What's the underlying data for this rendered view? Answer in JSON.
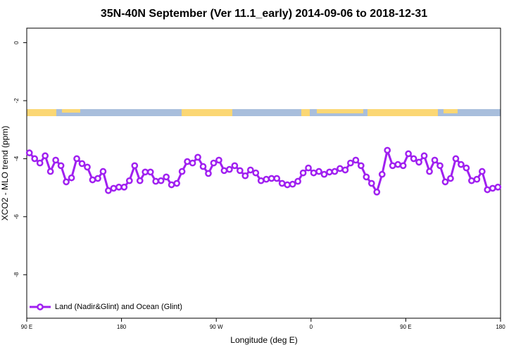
{
  "chart_data": {
    "type": "line",
    "title": "35N-40N September (Ver 11.1_early)   2014-09-06 to 2018-12-31",
    "x_label": "Longitude (deg E)",
    "y_label": "XCO2 - MLO trend (ppm)",
    "xlim": [
      90,
      540
    ],
    "xticks": [
      {
        "value": 90,
        "label": "90 E"
      },
      {
        "value": 180,
        "label": "180"
      },
      {
        "value": 270,
        "label": "90 W"
      },
      {
        "value": 360,
        "label": "0"
      },
      {
        "value": 450,
        "label": "90 E"
      },
      {
        "value": 540,
        "label": "180"
      }
    ],
    "ylim": [
      -9.5,
      0.5
    ],
    "yticks": [
      0,
      -2,
      -4,
      -6,
      -8
    ],
    "grid": false,
    "legend": "bottom-left",
    "x": [
      92.5,
      97.5,
      102.5,
      107.5,
      112.5,
      117.5,
      122.5,
      127.5,
      132.5,
      137.5,
      142.5,
      147.5,
      152.5,
      157.5,
      162.5,
      167.5,
      172.5,
      177.5,
      182.5,
      187.5,
      192.5,
      197.5,
      202.5,
      207.5,
      212.5,
      217.5,
      222.5,
      227.5,
      232.5,
      237.5,
      242.5,
      247.5,
      252.5,
      257.5,
      262.5,
      267.5,
      272.5,
      277.5,
      282.5,
      287.5,
      292.5,
      297.5,
      302.5,
      307.5,
      312.5,
      317.5,
      322.5,
      327.5,
      332.5,
      337.5,
      342.5,
      347.5,
      352.5,
      357.5,
      362.5,
      367.5,
      372.5,
      377.5,
      382.5,
      387.5,
      392.5,
      397.5,
      402.5,
      407.5,
      412.5,
      417.5,
      422.5,
      427.5,
      432.5,
      437.5,
      442.5,
      447.5,
      452.5,
      457.5,
      462.5,
      467.5,
      472.5,
      477.5,
      482.5,
      487.5,
      492.5,
      497.5,
      502.5,
      507.5,
      512.5,
      517.5,
      522.5,
      527.5,
      532.5,
      537.5
    ],
    "series": [
      {
        "name": "Land (Nadir&Glint) and Ocean (Glint)",
        "color": "#a020f0",
        "values": [
          -3.8,
          -4.0,
          -4.15,
          -3.9,
          -4.44,
          -4.05,
          -4.24,
          -4.8,
          -4.66,
          -4.0,
          -4.17,
          -4.29,
          -4.73,
          -4.68,
          -4.44,
          -5.1,
          -5.02,
          -4.98,
          -4.98,
          -4.76,
          -4.24,
          -4.76,
          -4.46,
          -4.46,
          -4.78,
          -4.76,
          -4.63,
          -4.9,
          -4.85,
          -4.44,
          -4.1,
          -4.15,
          -3.95,
          -4.27,
          -4.51,
          -4.15,
          -4.05,
          -4.41,
          -4.37,
          -4.24,
          -4.41,
          -4.59,
          -4.39,
          -4.49,
          -4.76,
          -4.71,
          -4.68,
          -4.68,
          -4.85,
          -4.9,
          -4.88,
          -4.78,
          -4.49,
          -4.32,
          -4.49,
          -4.44,
          -4.54,
          -4.46,
          -4.44,
          -4.34,
          -4.39,
          -4.15,
          -4.05,
          -4.24,
          -4.63,
          -4.85,
          -5.15,
          -4.54,
          -3.71,
          -4.24,
          -4.2,
          -4.24,
          -3.83,
          -4.0,
          -4.12,
          -3.9,
          -4.44,
          -4.05,
          -4.24,
          -4.8,
          -4.68,
          -4.0,
          -4.2,
          -4.32,
          -4.76,
          -4.71,
          -4.44,
          -5.07,
          -5.02,
          -4.98
        ]
      }
    ]
  }
}
